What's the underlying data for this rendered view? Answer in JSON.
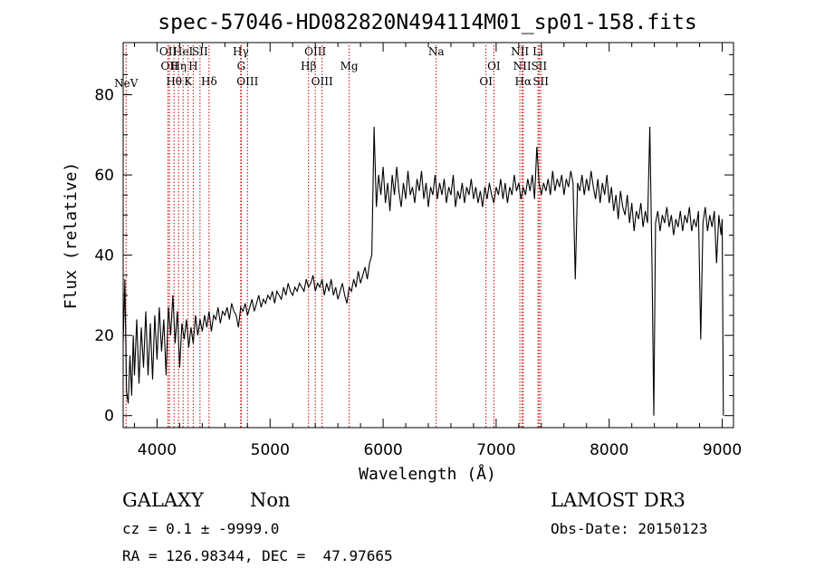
{
  "chart_data": {
    "type": "line",
    "title": "spec-57046-HD082820N494114M01_sp01-158.fits",
    "xlabel": "Wavelength (Å)",
    "ylabel": "Flux (relative)",
    "xlim": [
      3700,
      9100
    ],
    "ylim": [
      -3,
      93
    ],
    "xticks": [
      4000,
      5000,
      6000,
      7000,
      8000,
      9000
    ],
    "yticks": [
      0,
      20,
      40,
      60,
      80
    ],
    "grid": false,
    "line_color": "#000000",
    "marker_color": "#cc0000",
    "spectrum": [
      [
        3700,
        18
      ],
      [
        3715,
        34
      ],
      [
        3730,
        6
      ],
      [
        3745,
        3
      ],
      [
        3760,
        15
      ],
      [
        3775,
        5
      ],
      [
        3790,
        20
      ],
      [
        3800,
        10
      ],
      [
        3820,
        24
      ],
      [
        3840,
        8
      ],
      [
        3860,
        22
      ],
      [
        3880,
        12
      ],
      [
        3900,
        26
      ],
      [
        3920,
        10
      ],
      [
        3940,
        23
      ],
      [
        3960,
        9
      ],
      [
        3980,
        25
      ],
      [
        4000,
        14
      ],
      [
        4020,
        27
      ],
      [
        4040,
        16
      ],
      [
        4060,
        24
      ],
      [
        4080,
        10
      ],
      [
        4100,
        27
      ],
      [
        4120,
        20
      ],
      [
        4140,
        30
      ],
      [
        4160,
        18
      ],
      [
        4180,
        26
      ],
      [
        4200,
        12
      ],
      [
        4220,
        23
      ],
      [
        4240,
        19
      ],
      [
        4260,
        24
      ],
      [
        4280,
        17
      ],
      [
        4300,
        22
      ],
      [
        4320,
        18
      ],
      [
        4340,
        25
      ],
      [
        4360,
        20
      ],
      [
        4380,
        24
      ],
      [
        4400,
        21
      ],
      [
        4420,
        25
      ],
      [
        4440,
        22
      ],
      [
        4460,
        26
      ],
      [
        4480,
        21
      ],
      [
        4500,
        25
      ],
      [
        4520,
        24
      ],
      [
        4540,
        27
      ],
      [
        4560,
        23
      ],
      [
        4580,
        26
      ],
      [
        4600,
        25
      ],
      [
        4620,
        27
      ],
      [
        4640,
        24
      ],
      [
        4660,
        28
      ],
      [
        4680,
        26
      ],
      [
        4700,
        25
      ],
      [
        4720,
        22
      ],
      [
        4740,
        27
      ],
      [
        4760,
        26
      ],
      [
        4780,
        28
      ],
      [
        4800,
        25
      ],
      [
        4820,
        27
      ],
      [
        4840,
        29
      ],
      [
        4860,
        26
      ],
      [
        4880,
        28
      ],
      [
        4900,
        30
      ],
      [
        4920,
        27
      ],
      [
        4940,
        29
      ],
      [
        4960,
        28
      ],
      [
        4980,
        30
      ],
      [
        5000,
        29
      ],
      [
        5020,
        31
      ],
      [
        5040,
        28
      ],
      [
        5060,
        31
      ],
      [
        5080,
        30
      ],
      [
        5100,
        29
      ],
      [
        5120,
        32
      ],
      [
        5140,
        30
      ],
      [
        5160,
        33
      ],
      [
        5180,
        31
      ],
      [
        5200,
        30
      ],
      [
        5220,
        32
      ],
      [
        5240,
        31
      ],
      [
        5260,
        33
      ],
      [
        5280,
        32
      ],
      [
        5300,
        31
      ],
      [
        5320,
        34
      ],
      [
        5340,
        32
      ],
      [
        5360,
        33
      ],
      [
        5380,
        35
      ],
      [
        5400,
        31
      ],
      [
        5420,
        33
      ],
      [
        5440,
        32
      ],
      [
        5460,
        34
      ],
      [
        5480,
        30
      ],
      [
        5500,
        33
      ],
      [
        5520,
        31
      ],
      [
        5540,
        34
      ],
      [
        5560,
        30
      ],
      [
        5580,
        32
      ],
      [
        5600,
        29
      ],
      [
        5620,
        31
      ],
      [
        5640,
        33
      ],
      [
        5660,
        30
      ],
      [
        5680,
        28
      ],
      [
        5700,
        32
      ],
      [
        5720,
        31
      ],
      [
        5740,
        34
      ],
      [
        5760,
        32
      ],
      [
        5780,
        36
      ],
      [
        5800,
        33
      ],
      [
        5820,
        35
      ],
      [
        5840,
        37
      ],
      [
        5860,
        34
      ],
      [
        5880,
        38
      ],
      [
        5900,
        40
      ],
      [
        5920,
        72
      ],
      [
        5940,
        52
      ],
      [
        5960,
        60
      ],
      [
        5980,
        55
      ],
      [
        6000,
        62
      ],
      [
        6020,
        53
      ],
      [
        6040,
        58
      ],
      [
        6060,
        51
      ],
      [
        6080,
        60
      ],
      [
        6100,
        55
      ],
      [
        6120,
        62
      ],
      [
        6140,
        56
      ],
      [
        6160,
        52
      ],
      [
        6180,
        58
      ],
      [
        6200,
        54
      ],
      [
        6220,
        61
      ],
      [
        6240,
        55
      ],
      [
        6260,
        57
      ],
      [
        6280,
        53
      ],
      [
        6300,
        59
      ],
      [
        6320,
        56
      ],
      [
        6340,
        61
      ],
      [
        6360,
        54
      ],
      [
        6380,
        58
      ],
      [
        6400,
        52
      ],
      [
        6420,
        57
      ],
      [
        6440,
        55
      ],
      [
        6460,
        60
      ],
      [
        6480,
        54
      ],
      [
        6500,
        58
      ],
      [
        6520,
        55
      ],
      [
        6540,
        59
      ],
      [
        6560,
        53
      ],
      [
        6580,
        57
      ],
      [
        6600,
        55
      ],
      [
        6620,
        60
      ],
      [
        6640,
        52
      ],
      [
        6660,
        56
      ],
      [
        6680,
        54
      ],
      [
        6700,
        58
      ],
      [
        6720,
        53
      ],
      [
        6740,
        57
      ],
      [
        6760,
        55
      ],
      [
        6780,
        59
      ],
      [
        6800,
        54
      ],
      [
        6820,
        57
      ],
      [
        6840,
        53
      ],
      [
        6860,
        56
      ],
      [
        6880,
        52
      ],
      [
        6900,
        57
      ],
      [
        6920,
        54
      ],
      [
        6940,
        58
      ],
      [
        6960,
        55
      ],
      [
        6980,
        53
      ],
      [
        7000,
        57
      ],
      [
        7020,
        55
      ],
      [
        7040,
        59
      ],
      [
        7060,
        54
      ],
      [
        7080,
        58
      ],
      [
        7100,
        53
      ],
      [
        7120,
        57
      ],
      [
        7140,
        55
      ],
      [
        7160,
        60
      ],
      [
        7180,
        56
      ],
      [
        7200,
        58
      ],
      [
        7220,
        54
      ],
      [
        7240,
        57
      ],
      [
        7260,
        55
      ],
      [
        7280,
        59
      ],
      [
        7300,
        56
      ],
      [
        7320,
        60
      ],
      [
        7340,
        54
      ],
      [
        7360,
        67
      ],
      [
        7380,
        58
      ],
      [
        7400,
        55
      ],
      [
        7420,
        58
      ],
      [
        7440,
        56
      ],
      [
        7460,
        59
      ],
      [
        7480,
        55
      ],
      [
        7500,
        61
      ],
      [
        7520,
        56
      ],
      [
        7540,
        59
      ],
      [
        7560,
        57
      ],
      [
        7580,
        60
      ],
      [
        7600,
        55
      ],
      [
        7620,
        59
      ],
      [
        7640,
        57
      ],
      [
        7660,
        61
      ],
      [
        7680,
        58
      ],
      [
        7700,
        34
      ],
      [
        7720,
        58
      ],
      [
        7740,
        56
      ],
      [
        7760,
        60
      ],
      [
        7780,
        55
      ],
      [
        7800,
        59
      ],
      [
        7820,
        56
      ],
      [
        7840,
        61
      ],
      [
        7860,
        57
      ],
      [
        7880,
        54
      ],
      [
        7900,
        59
      ],
      [
        7920,
        53
      ],
      [
        7940,
        58
      ],
      [
        7960,
        55
      ],
      [
        7980,
        60
      ],
      [
        8000,
        53
      ],
      [
        8020,
        57
      ],
      [
        8040,
        51
      ],
      [
        8060,
        55
      ],
      [
        8080,
        49
      ],
      [
        8100,
        56
      ],
      [
        8120,
        52
      ],
      [
        8140,
        50
      ],
      [
        8160,
        55
      ],
      [
        8180,
        48
      ],
      [
        8200,
        53
      ],
      [
        8220,
        46
      ],
      [
        8240,
        51
      ],
      [
        8260,
        49
      ],
      [
        8280,
        53
      ],
      [
        8300,
        47
      ],
      [
        8320,
        51
      ],
      [
        8340,
        48
      ],
      [
        8360,
        72
      ],
      [
        8380,
        36
      ],
      [
        8395,
        0
      ],
      [
        8410,
        48
      ],
      [
        8430,
        51
      ],
      [
        8450,
        46
      ],
      [
        8470,
        50
      ],
      [
        8490,
        48
      ],
      [
        8510,
        52
      ],
      [
        8530,
        47
      ],
      [
        8550,
        50
      ],
      [
        8570,
        45
      ],
      [
        8590,
        49
      ],
      [
        8610,
        47
      ],
      [
        8630,
        51
      ],
      [
        8650,
        46
      ],
      [
        8670,
        50
      ],
      [
        8690,
        48
      ],
      [
        8710,
        52
      ],
      [
        8730,
        46
      ],
      [
        8750,
        49
      ],
      [
        8770,
        47
      ],
      [
        8790,
        51
      ],
      [
        8810,
        19
      ],
      [
        8830,
        48
      ],
      [
        8850,
        52
      ],
      [
        8870,
        46
      ],
      [
        8890,
        50
      ],
      [
        8910,
        47
      ],
      [
        8930,
        51
      ],
      [
        8950,
        38
      ],
      [
        8970,
        50
      ],
      [
        8990,
        45
      ],
      [
        9000,
        49
      ],
      [
        9010,
        0
      ]
    ],
    "emission_lines": [
      {
        "label": "NeV",
        "x": 3726,
        "row": 3
      },
      {
        "label": "OII",
        "x": 4097,
        "row": 0
      },
      {
        "label": "OII",
        "x": 4110,
        "row": 1
      },
      {
        "label": "Hθ",
        "x": 4150,
        "row": 2
      },
      {
        "label": "Hη",
        "x": 4190,
        "row": 1
      },
      {
        "label": "HeI",
        "x": 4230,
        "row": 0
      },
      {
        "label": "K",
        "x": 4275,
        "row": 2
      },
      {
        "label": "H",
        "x": 4320,
        "row": 1
      },
      {
        "label": "SII",
        "x": 4380,
        "row": 0
      },
      {
        "label": "Hδ",
        "x": 4460,
        "row": 2
      },
      {
        "label": "Hγ",
        "x": 4740,
        "row": 0
      },
      {
        "label": "G",
        "x": 4745,
        "row": 1
      },
      {
        "label": "OIII",
        "x": 4800,
        "row": 2
      },
      {
        "label": "Hβ",
        "x": 5340,
        "row": 1
      },
      {
        "label": "OIII",
        "x": 5400,
        "row": 0
      },
      {
        "label": "OIII",
        "x": 5460,
        "row": 2
      },
      {
        "label": "Mg",
        "x": 5700,
        "row": 1
      },
      {
        "label": "Na",
        "x": 6470,
        "row": 0
      },
      {
        "label": "OI",
        "x": 6910,
        "row": 2
      },
      {
        "label": "OI",
        "x": 6980,
        "row": 1
      },
      {
        "label": "NII",
        "x": 7210,
        "row": 0
      },
      {
        "label": "NII",
        "x": 7230,
        "row": 1
      },
      {
        "label": "Hα",
        "x": 7240,
        "row": 2
      },
      {
        "label": "Li",
        "x": 7370,
        "row": 0
      },
      {
        "label": "SII",
        "x": 7380,
        "row": 1
      },
      {
        "label": "SII",
        "x": 7395,
        "row": 2
      }
    ]
  },
  "info": {
    "class": "GALAXY",
    "subclass": "Non",
    "survey": "LAMOST DR3",
    "cz": "cz = 0.1 ± -9999.0",
    "obs_date": "Obs-Date: 20150123",
    "coords": "RA = 126.98344, DEC =  47.97665"
  }
}
